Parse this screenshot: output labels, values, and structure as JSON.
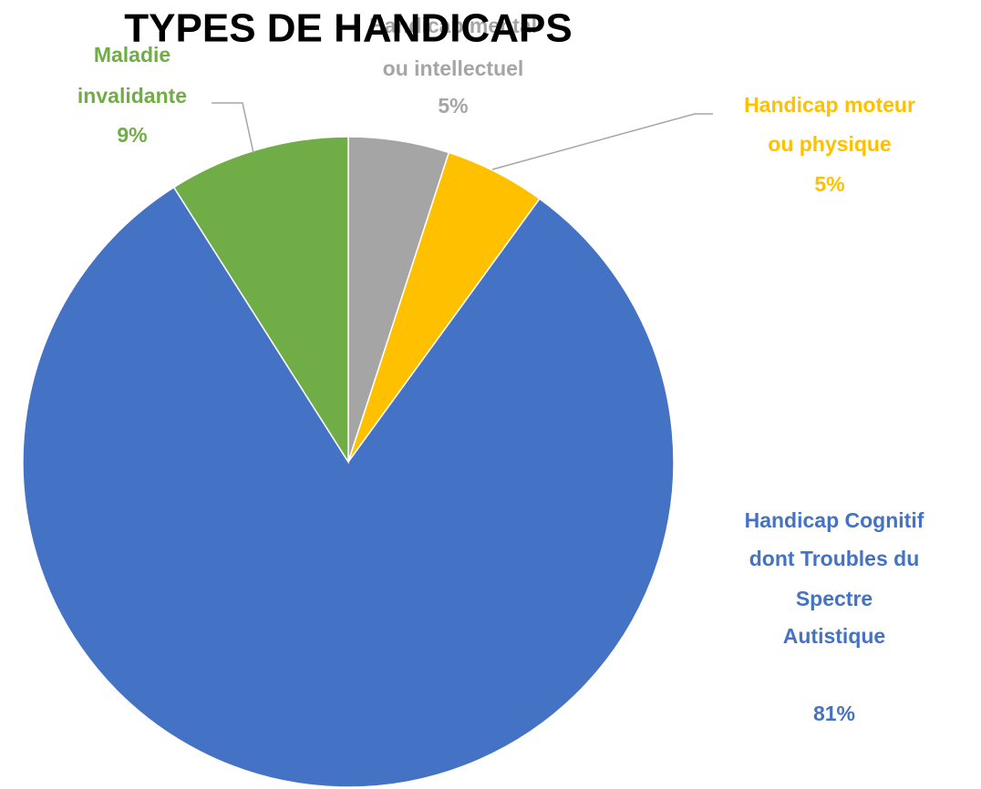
{
  "chart_data": {
    "type": "pie",
    "title": "TYPES DE HANDICAPS",
    "categories": [
      "Handicap mental ou intellectuel",
      "Handicap moteur ou physique",
      "Handicap Cognitif dont Troubles du Spectre Autistique",
      "Maladie invalidante"
    ],
    "values": [
      5,
      5,
      81,
      9
    ],
    "value_labels": [
      "5%",
      "5%",
      "81%",
      "9%"
    ],
    "colors": [
      "#a5a5a5",
      "#ffc000",
      "#4472c4",
      "#70ad47"
    ]
  }
}
